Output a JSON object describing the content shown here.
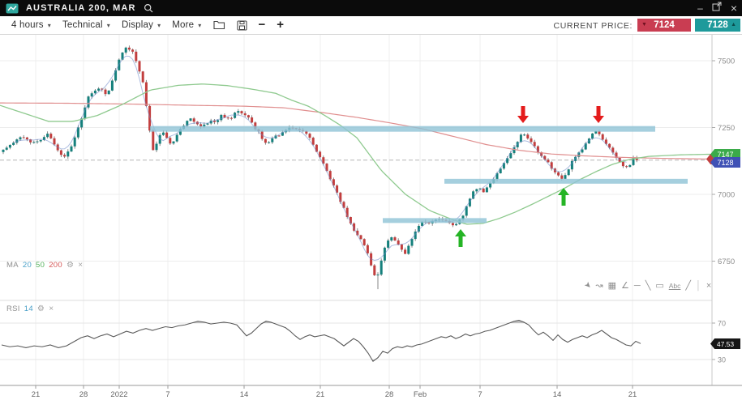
{
  "titlebar": {
    "title": "AUSTRALIA 200, MAR"
  },
  "window_controls": {
    "minimize": "–",
    "close": "×"
  },
  "toolbar": {
    "interval": "4 hours",
    "technical": "Technical",
    "display": "Display",
    "more": "More",
    "caret": "▾",
    "minus": "−",
    "plus": "+",
    "current_price_label": "CURRENT PRICE:",
    "bid": "7124",
    "offer": "7128",
    "bid_arrow": "▼",
    "offer_arrow": "▲",
    "bid_color": "#c93d52",
    "offer_color": "#1e9a9b"
  },
  "indicators": {
    "ma": {
      "label": "MA",
      "periods": [
        "20",
        "50",
        "200"
      ],
      "gear": "⚙",
      "close": "×"
    },
    "rsi": {
      "label": "RSI",
      "period": "14",
      "gear": "⚙",
      "close": "×"
    }
  },
  "tags": {
    "ma50": "7147",
    "price": "7128",
    "rsi": "47.53"
  },
  "drawing_toolbar": {
    "icons": [
      {
        "name": "pointer-tool",
        "glyph": "➤"
      },
      {
        "name": "freehand-tool",
        "glyph": "↝"
      },
      {
        "name": "grid-tool",
        "glyph": "▦"
      },
      {
        "name": "channel-tool",
        "glyph": "∠"
      },
      {
        "name": "horizontal-line-tool",
        "glyph": "─"
      },
      {
        "name": "trendline-tool",
        "glyph": "╲"
      },
      {
        "name": "rectangle-tool",
        "glyph": "▭"
      },
      {
        "name": "text-tool",
        "glyph": "Abc"
      },
      {
        "name": "line-tool",
        "glyph": "╱"
      },
      {
        "name": "separator",
        "glyph": "│"
      },
      {
        "name": "close-tool",
        "glyph": "×"
      }
    ]
  },
  "chart_data": {
    "type": "candlestick",
    "title": "AUSTRALIA 200, MAR",
    "interval": "4 hours",
    "ylim": [
      6640,
      7600
    ],
    "price_gridlines": [
      7500,
      7250,
      7000,
      6750
    ],
    "price_axis_labels": [
      "7500",
      "7250",
      "7000",
      "6750"
    ],
    "x_axis": {
      "labels": [
        "21",
        "28",
        "2022",
        "7",
        "14",
        "21",
        "28",
        "Feb",
        "7",
        "14",
        "21"
      ],
      "positions": [
        44,
        103,
        147,
        207,
        301,
        395,
        480,
        518,
        592,
        687,
        780
      ]
    },
    "current_price": 7128,
    "price_path": [
      [
        2,
        7160
      ],
      [
        14,
        7185
      ],
      [
        26,
        7215
      ],
      [
        38,
        7195
      ],
      [
        50,
        7205
      ],
      [
        60,
        7230
      ],
      [
        68,
        7180
      ],
      [
        74,
        7150
      ],
      [
        80,
        7140
      ],
      [
        86,
        7170
      ],
      [
        92,
        7210
      ],
      [
        100,
        7280
      ],
      [
        108,
        7360
      ],
      [
        116,
        7390
      ],
      [
        124,
        7400
      ],
      [
        132,
        7365
      ],
      [
        140,
        7440
      ],
      [
        148,
        7520
      ],
      [
        156,
        7555
      ],
      [
        164,
        7530
      ],
      [
        170,
        7480
      ],
      [
        176,
        7420
      ],
      [
        182,
        7300
      ],
      [
        188,
        7160
      ],
      [
        194,
        7200
      ],
      [
        200,
        7235
      ],
      [
        206,
        7210
      ],
      [
        212,
        7180
      ],
      [
        218,
        7225
      ],
      [
        224,
        7250
      ],
      [
        230,
        7270
      ],
      [
        236,
        7285
      ],
      [
        242,
        7265
      ],
      [
        248,
        7255
      ],
      [
        254,
        7265
      ],
      [
        260,
        7275
      ],
      [
        266,
        7270
      ],
      [
        272,
        7295
      ],
      [
        278,
        7290
      ],
      [
        284,
        7280
      ],
      [
        290,
        7305
      ],
      [
        296,
        7310
      ],
      [
        302,
        7300
      ],
      [
        308,
        7280
      ],
      [
        314,
        7250
      ],
      [
        320,
        7230
      ],
      [
        326,
        7190
      ],
      [
        332,
        7195
      ],
      [
        338,
        7215
      ],
      [
        344,
        7220
      ],
      [
        350,
        7235
      ],
      [
        356,
        7245
      ],
      [
        362,
        7250
      ],
      [
        368,
        7245
      ],
      [
        374,
        7235
      ],
      [
        380,
        7225
      ],
      [
        386,
        7190
      ],
      [
        392,
        7150
      ],
      [
        398,
        7120
      ],
      [
        404,
        7080
      ],
      [
        410,
        7040
      ],
      [
        416,
        7000
      ],
      [
        422,
        6960
      ],
      [
        428,
        6920
      ],
      [
        434,
        6880
      ],
      [
        440,
        6850
      ],
      [
        446,
        6830
      ],
      [
        452,
        6790
      ],
      [
        458,
        6730
      ],
      [
        464,
        6680
      ],
      [
        470,
        6750
      ],
      [
        476,
        6820
      ],
      [
        482,
        6840
      ],
      [
        488,
        6825
      ],
      [
        494,
        6800
      ],
      [
        500,
        6775
      ],
      [
        506,
        6820
      ],
      [
        512,
        6860
      ],
      [
        518,
        6895
      ],
      [
        524,
        6900
      ],
      [
        530,
        6890
      ],
      [
        536,
        6905
      ],
      [
        542,
        6910
      ],
      [
        548,
        6900
      ],
      [
        554,
        6890
      ],
      [
        560,
        6880
      ],
      [
        566,
        6905
      ],
      [
        572,
        6925
      ],
      [
        578,
        6975
      ],
      [
        584,
        7010
      ],
      [
        590,
        7025
      ],
      [
        596,
        7005
      ],
      [
        602,
        7030
      ],
      [
        608,
        7055
      ],
      [
        614,
        7085
      ],
      [
        620,
        7110
      ],
      [
        626,
        7140
      ],
      [
        632,
        7165
      ],
      [
        638,
        7195
      ],
      [
        644,
        7230
      ],
      [
        650,
        7215
      ],
      [
        656,
        7190
      ],
      [
        662,
        7165
      ],
      [
        668,
        7145
      ],
      [
        674,
        7125
      ],
      [
        680,
        7100
      ],
      [
        686,
        7080
      ],
      [
        692,
        7060
      ],
      [
        698,
        7075
      ],
      [
        704,
        7115
      ],
      [
        710,
        7140
      ],
      [
        716,
        7160
      ],
      [
        722,
        7190
      ],
      [
        728,
        7215
      ],
      [
        734,
        7240
      ],
      [
        740,
        7220
      ],
      [
        746,
        7195
      ],
      [
        752,
        7170
      ],
      [
        758,
        7150
      ],
      [
        764,
        7120
      ],
      [
        770,
        7095
      ],
      [
        776,
        7105
      ],
      [
        782,
        7140
      ],
      [
        788,
        7128
      ]
    ],
    "spike_low": {
      "x": 466,
      "price": 6645
    },
    "ma50": [
      [
        0,
        7333
      ],
      [
        30,
        7303
      ],
      [
        60,
        7273
      ],
      [
        90,
        7273
      ],
      [
        120,
        7295
      ],
      [
        150,
        7335
      ],
      [
        185,
        7390
      ],
      [
        220,
        7408
      ],
      [
        250,
        7413
      ],
      [
        280,
        7407
      ],
      [
        310,
        7394
      ],
      [
        340,
        7378
      ],
      [
        360,
        7352
      ],
      [
        380,
        7330
      ],
      [
        400,
        7296
      ],
      [
        420,
        7258
      ],
      [
        440,
        7212
      ],
      [
        470,
        7090
      ],
      [
        500,
        7000
      ],
      [
        530,
        6939
      ],
      [
        555,
        6909
      ],
      [
        575,
        6888
      ],
      [
        595,
        6891
      ],
      [
        615,
        6909
      ],
      [
        635,
        6933
      ],
      [
        655,
        6961
      ],
      [
        675,
        6991
      ],
      [
        695,
        7021
      ],
      [
        715,
        7055
      ],
      [
        735,
        7085
      ],
      [
        755,
        7112
      ],
      [
        775,
        7130
      ],
      [
        800,
        7142
      ],
      [
        840,
        7148
      ],
      [
        876,
        7150
      ]
    ],
    "ma200": [
      [
        0,
        7342
      ],
      [
        80,
        7341
      ],
      [
        160,
        7338
      ],
      [
        240,
        7333
      ],
      [
        300,
        7330
      ],
      [
        350,
        7324
      ],
      [
        400,
        7305
      ],
      [
        440,
        7288
      ],
      [
        480,
        7268
      ],
      [
        520,
        7246
      ],
      [
        560,
        7216
      ],
      [
        600,
        7186
      ],
      [
        640,
        7165
      ],
      [
        680,
        7151
      ],
      [
        720,
        7144
      ],
      [
        760,
        7139
      ],
      [
        810,
        7135
      ],
      [
        876,
        7132
      ]
    ],
    "levels": {
      "resistance": {
        "price": 7245,
        "x_from": 185,
        "x_to": 808,
        "thickness": 7
      },
      "support_mid": {
        "price": 7049,
        "x_from": 548,
        "x_to": 848,
        "thickness": 6
      },
      "support_low": {
        "price": 6902,
        "x_from": 472,
        "x_to": 600,
        "thickness": 6
      }
    },
    "annotations": {
      "red_arrows": [
        {
          "x": 645
        },
        {
          "x": 738
        }
      ],
      "green_arrows": [
        {
          "x": 568,
          "tip": 240
        },
        {
          "x": 695,
          "tip": 189
        }
      ]
    },
    "rsi": {
      "period": 14,
      "upper": 70,
      "lower": 30,
      "last": 47.53,
      "axis_labels": [
        "70",
        "30"
      ],
      "path": [
        [
          2,
          46
        ],
        [
          12,
          44
        ],
        [
          22,
          45
        ],
        [
          32,
          43
        ],
        [
          42,
          45
        ],
        [
          52,
          44
        ],
        [
          62,
          46
        ],
        [
          72,
          43
        ],
        [
          82,
          45
        ],
        [
          92,
          50
        ],
        [
          100,
          54
        ],
        [
          108,
          56
        ],
        [
          116,
          53
        ],
        [
          124,
          56
        ],
        [
          132,
          58
        ],
        [
          140,
          55
        ],
        [
          148,
          58
        ],
        [
          156,
          61
        ],
        [
          164,
          59
        ],
        [
          172,
          62
        ],
        [
          180,
          64
        ],
        [
          188,
          62
        ],
        [
          196,
          64
        ],
        [
          204,
          66
        ],
        [
          212,
          65
        ],
        [
          220,
          67
        ],
        [
          228,
          68
        ],
        [
          236,
          70
        ],
        [
          244,
          72
        ],
        [
          252,
          71
        ],
        [
          260,
          69
        ],
        [
          268,
          70
        ],
        [
          276,
          71
        ],
        [
          284,
          70
        ],
        [
          292,
          68
        ],
        [
          298,
          62
        ],
        [
          304,
          56
        ],
        [
          310,
          59
        ],
        [
          316,
          64
        ],
        [
          322,
          69
        ],
        [
          328,
          72
        ],
        [
          334,
          71
        ],
        [
          340,
          69
        ],
        [
          346,
          67
        ],
        [
          352,
          65
        ],
        [
          358,
          61
        ],
        [
          364,
          56
        ],
        [
          370,
          52
        ],
        [
          376,
          55
        ],
        [
          382,
          57
        ],
        [
          388,
          55
        ],
        [
          394,
          56
        ],
        [
          400,
          57
        ],
        [
          406,
          55
        ],
        [
          412,
          53
        ],
        [
          418,
          49
        ],
        [
          424,
          45
        ],
        [
          430,
          49
        ],
        [
          436,
          53
        ],
        [
          442,
          50
        ],
        [
          448,
          44
        ],
        [
          454,
          37
        ],
        [
          460,
          28
        ],
        [
          466,
          32
        ],
        [
          472,
          39
        ],
        [
          478,
          37
        ],
        [
          484,
          42
        ],
        [
          490,
          44
        ],
        [
          496,
          43
        ],
        [
          502,
          45
        ],
        [
          508,
          44
        ],
        [
          514,
          46
        ],
        [
          520,
          47
        ],
        [
          526,
          49
        ],
        [
          532,
          51
        ],
        [
          538,
          53
        ],
        [
          544,
          55
        ],
        [
          550,
          54
        ],
        [
          556,
          56
        ],
        [
          562,
          53
        ],
        [
          568,
          55
        ],
        [
          574,
          58
        ],
        [
          580,
          56
        ],
        [
          586,
          58
        ],
        [
          592,
          59
        ],
        [
          598,
          61
        ],
        [
          604,
          62
        ],
        [
          610,
          64
        ],
        [
          616,
          66
        ],
        [
          622,
          68
        ],
        [
          628,
          70
        ],
        [
          634,
          72
        ],
        [
          640,
          73
        ],
        [
          646,
          71
        ],
        [
          652,
          68
        ],
        [
          658,
          62
        ],
        [
          664,
          57
        ],
        [
          670,
          60
        ],
        [
          676,
          56
        ],
        [
          682,
          51
        ],
        [
          688,
          57
        ],
        [
          694,
          52
        ],
        [
          700,
          49
        ],
        [
          706,
          52
        ],
        [
          712,
          54
        ],
        [
          718,
          56
        ],
        [
          724,
          54
        ],
        [
          730,
          57
        ],
        [
          736,
          59
        ],
        [
          742,
          62
        ],
        [
          748,
          58
        ],
        [
          754,
          54
        ],
        [
          760,
          52
        ],
        [
          766,
          49
        ],
        [
          772,
          46
        ],
        [
          778,
          45
        ],
        [
          784,
          50
        ],
        [
          790,
          47.5
        ]
      ]
    },
    "colors": {
      "candle_up": "#15807c",
      "candle_down": "#c23e3e",
      "wick": "#7a7a7a",
      "ma20": "#6b86c8",
      "ma50": "#8fca8f",
      "ma200": "#e08e8e",
      "band": "#8fc3d6",
      "arrow_red": "#e41c1c",
      "arrow_green": "#25b425",
      "rsi_line": "#5a5a5a"
    }
  }
}
